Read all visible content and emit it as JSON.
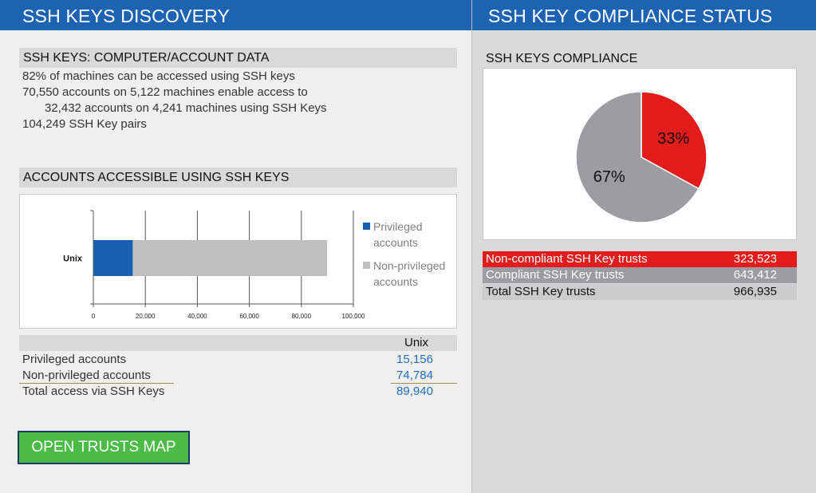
{
  "left": {
    "banner": "SSH KEYS DISCOVERY",
    "computer_section": {
      "title": "SSH KEYS: COMPUTER/ACCOUNT DATA",
      "lines": [
        "82% of machines can be accessed using SSH keys",
        "70,550 accounts on 5,122 machines enable access to",
        "32,432 accounts on 4,241 machines using SSH Keys",
        "104,249 SSH Key pairs"
      ]
    },
    "accounts_section": {
      "title": "ACCOUNTS ACCESSIBLE USING SSH KEYS"
    },
    "table": {
      "column_header": "Unix",
      "rows": [
        {
          "label": "Privileged accounts",
          "value": "15,156"
        },
        {
          "label": "Non-privileged accounts",
          "value": "74,784"
        },
        {
          "label": "Total access via SSH Keys",
          "value": "89,940"
        }
      ]
    },
    "open_button": "OPEN TRUSTS MAP"
  },
  "right": {
    "banner": "SSH KEY COMPLIANCE STATUS",
    "pie_title": "SSH KEYS COMPLIANCE",
    "compliance_table": [
      {
        "label": "Non-compliant SSH Key trusts",
        "value": "323,523",
        "bg": "#e31b1b",
        "fg": "#ffffff"
      },
      {
        "label": "Compliant SSH Key trusts",
        "value": "643,412",
        "bg": "#9d9da1",
        "fg": "#ffffff"
      },
      {
        "label": "Total SSH Key trusts",
        "value": "966,935",
        "bg": "#cccccc",
        "fg": "#111111"
      }
    ]
  },
  "chart_data": [
    {
      "type": "bar",
      "orientation": "horizontal",
      "stacked": true,
      "categories": [
        "Unix"
      ],
      "series": [
        {
          "name": "Privileged accounts",
          "values": [
            15156
          ],
          "color": "#1760b0"
        },
        {
          "name": "Non-privileged accounts",
          "values": [
            74784
          ],
          "color": "#bfbfbf"
        }
      ],
      "xlim": [
        0,
        100000
      ],
      "x_ticks": [
        "0",
        "20,000",
        "40,000",
        "60,000",
        "80,000",
        "100,000"
      ],
      "grid": true,
      "legend": "right"
    },
    {
      "type": "pie",
      "slices": [
        {
          "label": "33%",
          "value": 33,
          "color": "#e31b1b"
        },
        {
          "label": "67%",
          "value": 67,
          "color": "#9d9da1"
        }
      ]
    }
  ]
}
